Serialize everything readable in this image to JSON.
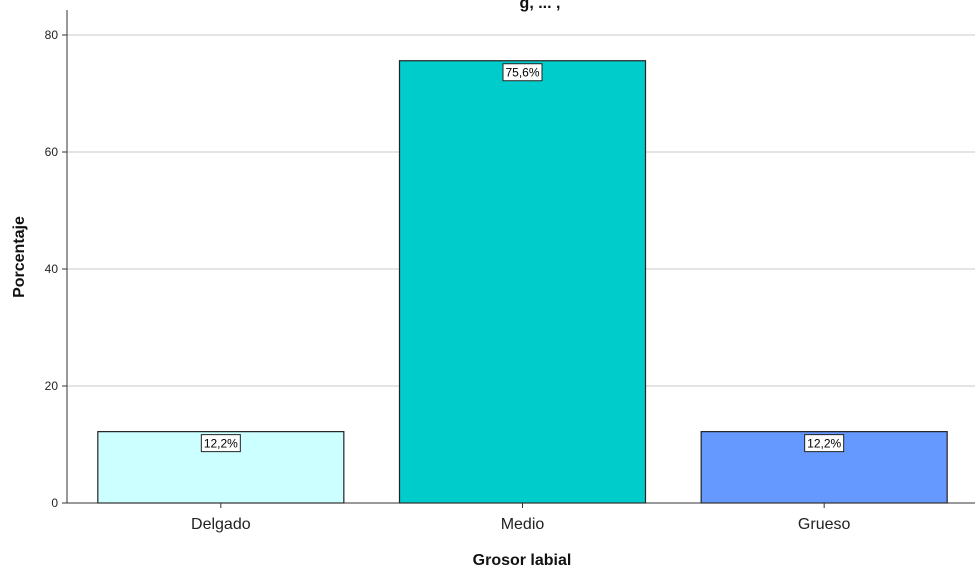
{
  "chart_data": {
    "type": "bar",
    "title_partial": "g, ... ,",
    "categories": [
      "Delgado",
      "Medio",
      "Grueso"
    ],
    "values": [
      12.2,
      75.6,
      12.2
    ],
    "data_labels": [
      "12,2%",
      "75,6%",
      "12,2%"
    ],
    "colors": [
      "#ccffff",
      "#00cccc",
      "#6699ff"
    ],
    "xlabel": "Grosor labial",
    "ylabel": "Porcentaje",
    "ylim": [
      0,
      80
    ],
    "yticks": [
      0,
      20,
      40,
      60,
      80
    ],
    "grid": true,
    "legend": "none"
  }
}
